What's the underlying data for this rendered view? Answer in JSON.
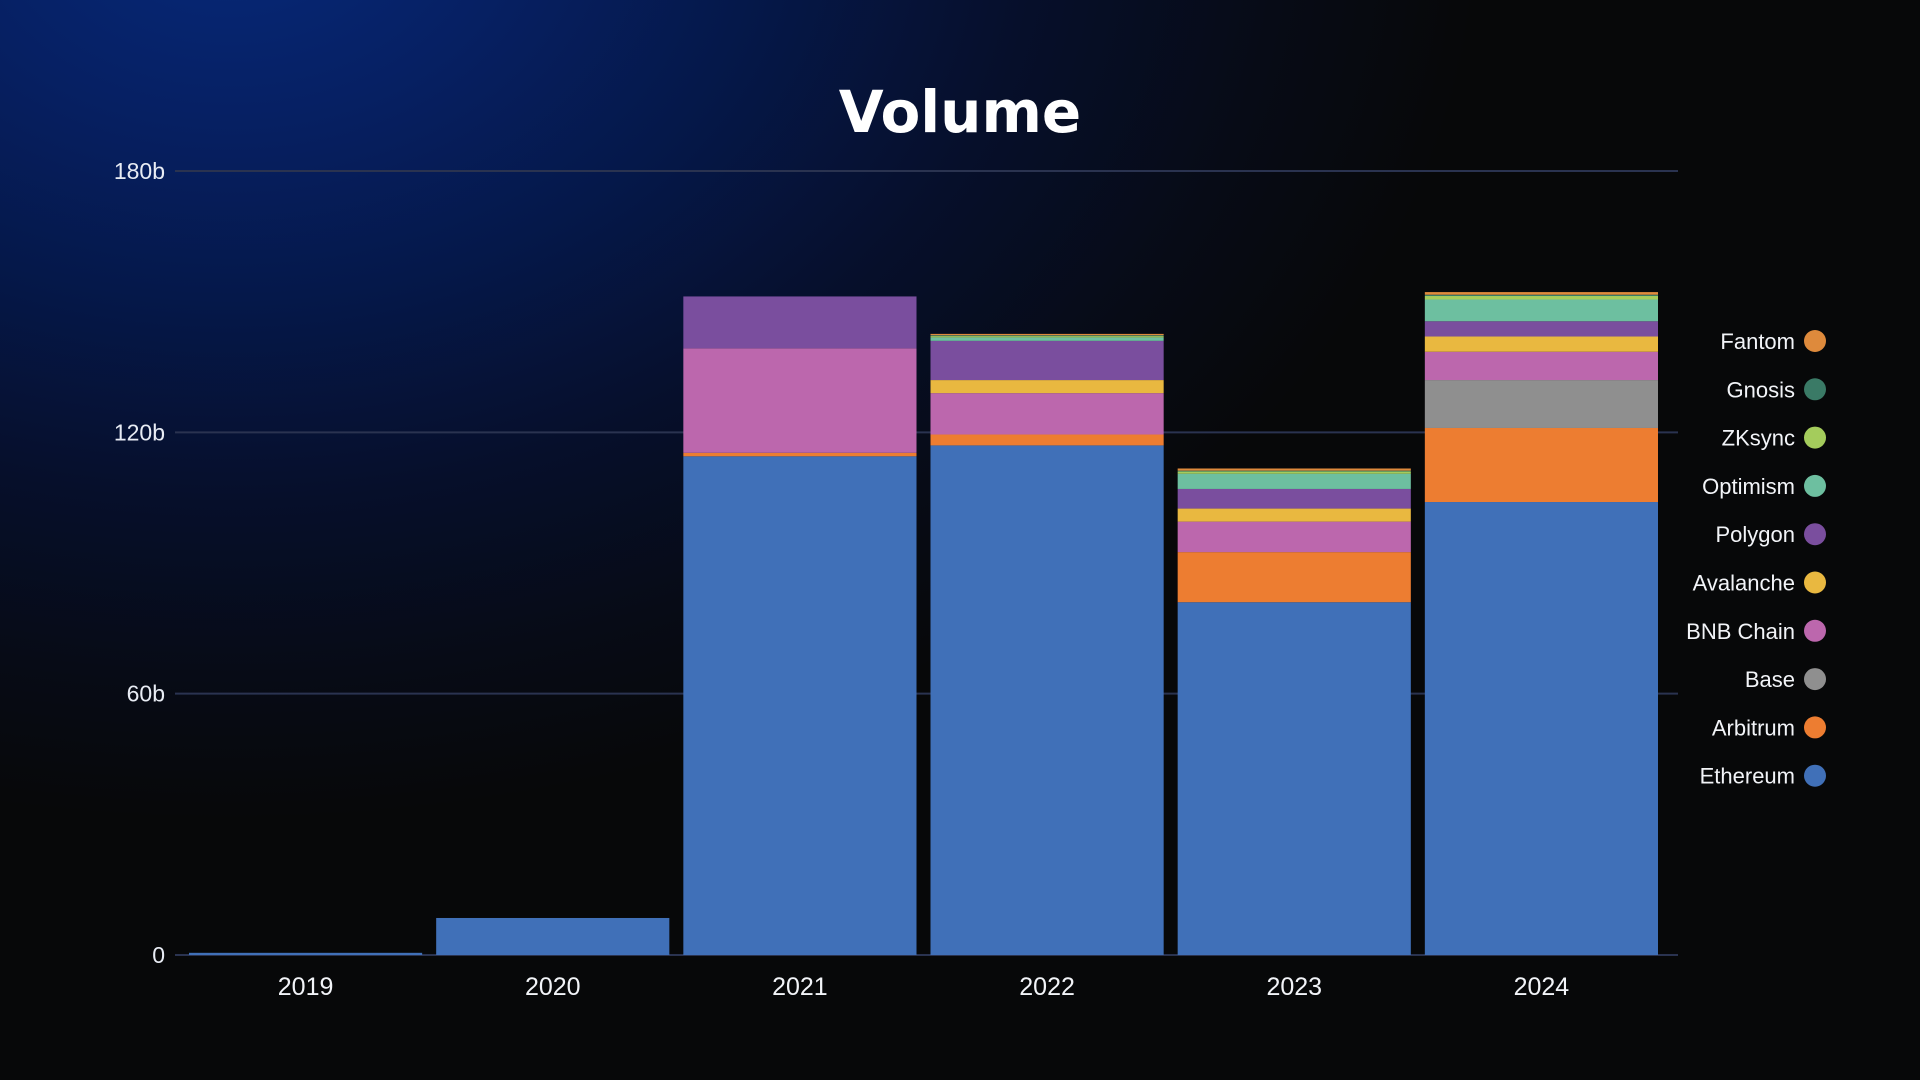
{
  "chart_data": {
    "type": "bar",
    "stacked": true,
    "title": "Volume",
    "xlabel": "",
    "ylabel": "",
    "categories": [
      "2019",
      "2020",
      "2021",
      "2022",
      "2023",
      "2024"
    ],
    "ylim": [
      0,
      180
    ],
    "yticks": [
      0,
      60,
      120,
      180
    ],
    "ytick_labels": [
      "0",
      "60b",
      "120b",
      "180b"
    ],
    "grid": true,
    "legend_position": "right",
    "series": [
      {
        "name": "Ethereum",
        "color": "#4070b8",
        "values": [
          0.5,
          8.5,
          114.5,
          117.0,
          81.0,
          104.0
        ]
      },
      {
        "name": "Arbitrum",
        "color": "#ed7d31",
        "values": [
          0,
          0,
          0.8,
          2.5,
          11.5,
          17.0
        ]
      },
      {
        "name": "Base",
        "color": "#8f8f8f",
        "values": [
          0,
          0,
          0,
          0,
          0,
          11.0
        ]
      },
      {
        "name": "BNB Chain",
        "color": "#bc67ad",
        "values": [
          0,
          0,
          24.0,
          9.5,
          7.0,
          6.5
        ]
      },
      {
        "name": "Avalanche",
        "color": "#e9b840",
        "values": [
          0,
          0,
          0,
          3.0,
          3.0,
          3.5
        ]
      },
      {
        "name": "Polygon",
        "color": "#7a4e9e",
        "values": [
          0,
          0,
          11.9,
          9.0,
          4.5,
          3.5
        ]
      },
      {
        "name": "Optimism",
        "color": "#6dbfa0",
        "values": [
          0,
          0,
          0,
          0.8,
          3.5,
          5.0
        ]
      },
      {
        "name": "ZKsync",
        "color": "#a4cc5c",
        "values": [
          0,
          0,
          0,
          0.3,
          0.5,
          0.8
        ]
      },
      {
        "name": "Gnosis",
        "color": "#3a7a66",
        "values": [
          0,
          0,
          0,
          0.2,
          0.2,
          0.3
        ]
      },
      {
        "name": "Fantom",
        "color": "#de8a3c",
        "values": [
          0,
          0,
          0,
          0.3,
          0.5,
          0.6
        ]
      }
    ]
  }
}
